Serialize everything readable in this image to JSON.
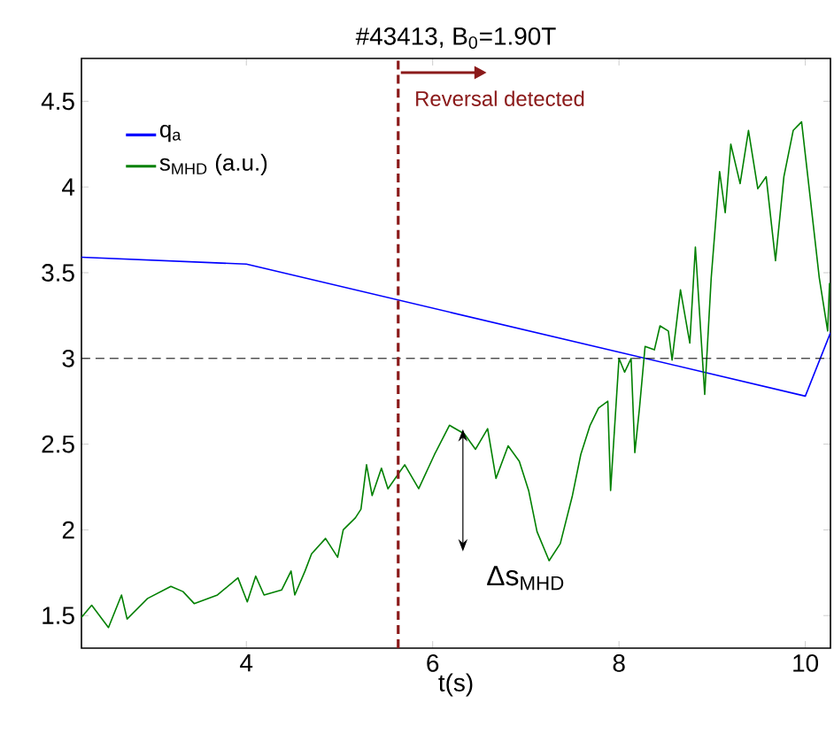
{
  "chart_data": {
    "type": "line",
    "title": "#43413, B$_{0}$=1.90T",
    "xlabel": "t(s)",
    "xlim": [
      2.23,
      10.27
    ],
    "ylim": [
      1.31,
      4.75
    ],
    "xticks": [
      4,
      6,
      8,
      10
    ],
    "yticks": [
      1.5,
      2,
      2.5,
      3,
      3.5,
      4,
      4.5
    ],
    "legend": "top left",
    "series": [
      {
        "name": "q$_{a}$",
        "color": "#0000ff",
        "x": [
          2.23,
          4.0,
          10.0,
          10.27
        ],
        "values": [
          3.59,
          3.55,
          2.78,
          3.15
        ]
      },
      {
        "name": "s$_{MHD}$ (a.u.)",
        "color": "#008000",
        "x": [
          2.23,
          2.34,
          2.52,
          2.66,
          2.72,
          2.94,
          3.19,
          3.32,
          3.44,
          3.69,
          3.91,
          4.01,
          4.1,
          4.19,
          4.38,
          4.48,
          4.52,
          4.63,
          4.7,
          4.85,
          4.98,
          5.04,
          5.17,
          5.23,
          5.29,
          5.35,
          5.45,
          5.52,
          5.7,
          5.85,
          6.02,
          6.18,
          6.34,
          6.46,
          6.59,
          6.68,
          6.81,
          6.93,
          7.03,
          7.12,
          7.25,
          7.37,
          7.5,
          7.59,
          7.69,
          7.78,
          7.88,
          7.91,
          8.0,
          8.06,
          8.13,
          8.17,
          8.22,
          8.28,
          8.38,
          8.44,
          8.53,
          8.57,
          8.66,
          8.76,
          8.82,
          8.92,
          8.99,
          9.08,
          9.14,
          9.2,
          9.3,
          9.39,
          9.49,
          9.58,
          9.68,
          9.77,
          9.87,
          9.96,
          10.05,
          10.15,
          10.24,
          10.26
        ],
        "values": [
          1.49,
          1.56,
          1.43,
          1.62,
          1.48,
          1.6,
          1.67,
          1.64,
          1.57,
          1.62,
          1.72,
          1.58,
          1.73,
          1.62,
          1.65,
          1.76,
          1.62,
          1.76,
          1.86,
          1.95,
          1.84,
          2.0,
          2.07,
          2.12,
          2.38,
          2.2,
          2.36,
          2.24,
          2.38,
          2.24,
          2.44,
          2.61,
          2.56,
          2.47,
          2.59,
          2.3,
          2.49,
          2.4,
          2.23,
          1.99,
          1.82,
          1.92,
          2.2,
          2.44,
          2.61,
          2.71,
          2.75,
          2.23,
          3.0,
          2.92,
          3.0,
          2.45,
          2.71,
          3.07,
          3.05,
          3.19,
          3.16,
          2.99,
          3.4,
          3.09,
          3.65,
          2.79,
          3.47,
          4.09,
          3.85,
          4.25,
          4.02,
          4.33,
          3.99,
          4.06,
          3.57,
          4.06,
          4.33,
          4.38,
          3.95,
          3.47,
          3.16,
          3.44
        ]
      }
    ],
    "ref_lines": [
      {
        "axis": "y",
        "value": 3,
        "label": null,
        "color": "#000000",
        "line_style": "dashed"
      },
      {
        "axis": "x",
        "value": 5.63,
        "label": "Reversal detected",
        "color": "#8b1a1a",
        "line_style": "dashed"
      }
    ],
    "annotations": [
      "Δs$_{MHD}$"
    ]
  }
}
